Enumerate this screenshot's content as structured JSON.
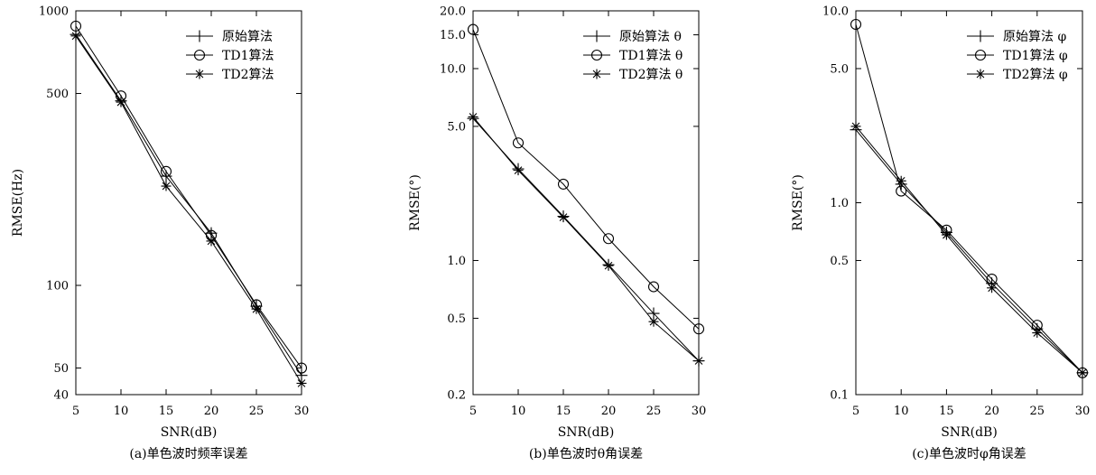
{
  "chart_data": [
    {
      "type": "line",
      "log_y": true,
      "caption": "(a)单色波时频率误差",
      "xlabel": "SNR(dB)",
      "ylabel": "RMSE(Hz)",
      "xlim": [
        5,
        30
      ],
      "ylim": [
        40,
        1000
      ],
      "xticks": [
        5,
        10,
        15,
        20,
        25,
        30
      ],
      "xtick_labels": [
        "5",
        "10",
        "15",
        "20",
        "25",
        "30"
      ],
      "yticks": [
        40,
        50,
        100,
        500,
        1000
      ],
      "ytick_labels": [
        "40",
        "50",
        "100",
        "500",
        "1000"
      ],
      "legend_position": "top-right",
      "x": [
        5,
        10,
        15,
        20,
        25,
        30
      ],
      "series": [
        {
          "name": "原始算法",
          "marker": "plus",
          "values": [
            820,
            470,
            250,
            155,
            84,
            47
          ]
        },
        {
          "name": "TD1算法",
          "marker": "circle",
          "values": [
            880,
            490,
            260,
            152,
            85,
            50
          ]
        },
        {
          "name": "TD2算法",
          "marker": "star",
          "values": [
            810,
            465,
            230,
            145,
            82,
            44
          ]
        }
      ]
    },
    {
      "type": "line",
      "log_y": true,
      "caption": "(b)单色波时θ角误差",
      "xlabel": "SNR(dB)",
      "ylabel": "RMSE(°)",
      "xlim": [
        5,
        30
      ],
      "ylim": [
        0.2,
        20
      ],
      "xticks": [
        5,
        10,
        15,
        20,
        25,
        30
      ],
      "xtick_labels": [
        "5",
        "10",
        "15",
        "20",
        "25",
        "30"
      ],
      "yticks": [
        0.2,
        0.5,
        1,
        5,
        10,
        15,
        20
      ],
      "ytick_labels": [
        "0.2",
        "0.5",
        "1.0",
        "5.0",
        "10.0",
        "15.0",
        "20.0"
      ],
      "legend_position": "top-right",
      "x": [
        5,
        10,
        15,
        20,
        25,
        30
      ],
      "series": [
        {
          "name": "原始算法 θ",
          "marker": "plus",
          "values": [
            5.5,
            3.0,
            1.7,
            0.95,
            0.53,
            0.3
          ]
        },
        {
          "name": "TD1算法 θ",
          "marker": "circle",
          "values": [
            16.0,
            4.1,
            2.5,
            1.3,
            0.73,
            0.44
          ]
        },
        {
          "name": "TD2算法 θ",
          "marker": "star",
          "values": [
            5.6,
            2.95,
            1.68,
            0.94,
            0.48,
            0.3
          ]
        }
      ]
    },
    {
      "type": "line",
      "log_y": true,
      "caption": "(c)单色波时φ角误差",
      "xlabel": "SNR(dB)",
      "ylabel": "RMSE(°)",
      "xlim": [
        5,
        30
      ],
      "ylim": [
        0.1,
        10
      ],
      "xticks": [
        5,
        10,
        15,
        20,
        25,
        30
      ],
      "xtick_labels": [
        "5",
        "10",
        "15",
        "20",
        "25",
        "30"
      ],
      "yticks": [
        0.1,
        0.5,
        1,
        5,
        10
      ],
      "ytick_labels": [
        "0.1",
        "0.5",
        "1.0",
        "5.0",
        "10.0"
      ],
      "legend_position": "top-right",
      "x": [
        5,
        10,
        15,
        20,
        25,
        30
      ],
      "series": [
        {
          "name": "原始算法 φ",
          "marker": "plus",
          "values": [
            2.4,
            1.25,
            0.7,
            0.38,
            0.22,
            0.13
          ]
        },
        {
          "name": "TD1算法 φ",
          "marker": "circle",
          "values": [
            8.5,
            1.15,
            0.72,
            0.4,
            0.23,
            0.13
          ]
        },
        {
          "name": "TD2算法 φ",
          "marker": "star",
          "values": [
            2.5,
            1.3,
            0.68,
            0.36,
            0.21,
            0.13
          ]
        }
      ]
    }
  ]
}
